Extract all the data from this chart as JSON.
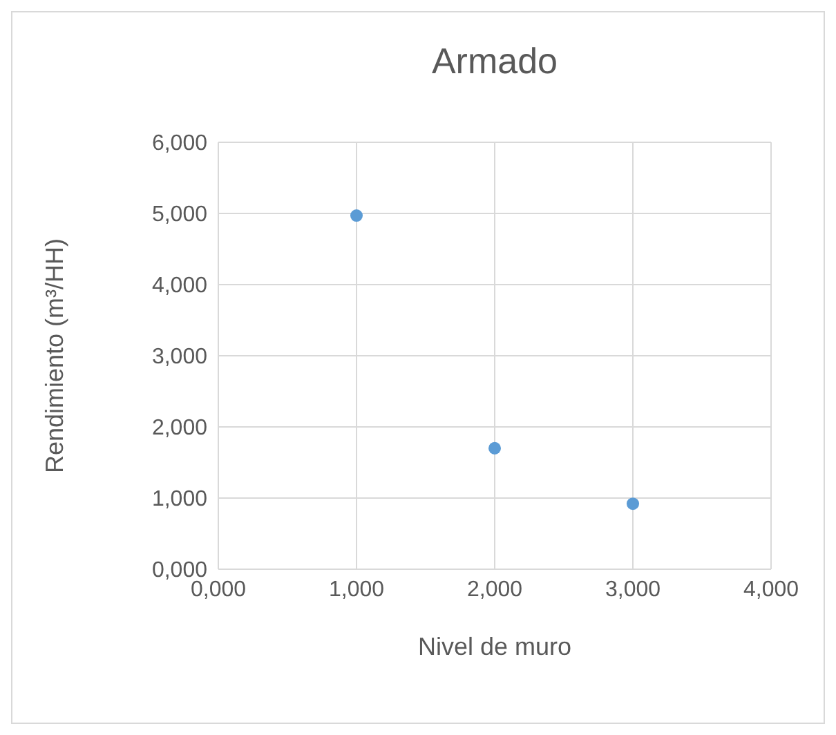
{
  "chart_data": {
    "type": "scatter",
    "title": "Armado",
    "xlabel": "Nivel de muro",
    "ylabel": "Rendimiento (m³/HH)",
    "x": [
      1,
      2,
      3
    ],
    "series": [
      {
        "color": "#5b9bd5",
        "values": [
          4.97,
          1.7,
          0.92
        ]
      }
    ],
    "xlim": [
      0,
      4
    ],
    "xticks": [
      {
        "value": 0,
        "label": "0,000"
      },
      {
        "value": 1,
        "label": "1,000"
      },
      {
        "value": 2,
        "label": "2,000"
      },
      {
        "value": 3,
        "label": "3,000"
      },
      {
        "value": 4,
        "label": "4,000"
      }
    ],
    "ylim": [
      0,
      6
    ],
    "yticks": [
      {
        "value": 0,
        "label": "0,000"
      },
      {
        "value": 1,
        "label": "1,000"
      },
      {
        "value": 2,
        "label": "2,000"
      },
      {
        "value": 3,
        "label": "3,000"
      },
      {
        "value": 4,
        "label": "4,000"
      },
      {
        "value": 5,
        "label": "5,000"
      },
      {
        "value": 6,
        "label": "6,000"
      }
    ],
    "grid": true,
    "marker": "circle",
    "legend": false
  }
}
